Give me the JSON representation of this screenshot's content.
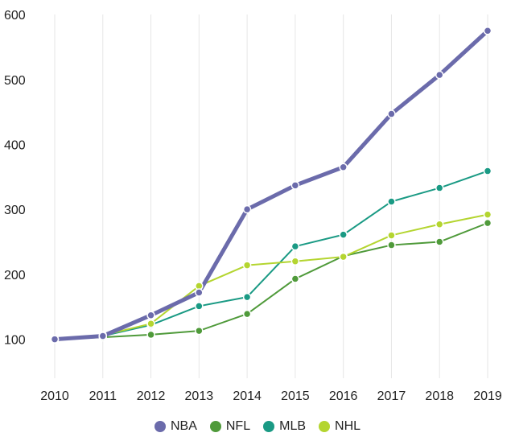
{
  "chart_data": {
    "type": "line",
    "x": [
      2010,
      2011,
      2012,
      2013,
      2014,
      2015,
      2016,
      2017,
      2018,
      2019
    ],
    "ylim": [
      40,
      610
    ],
    "y_ticks": [
      100,
      200,
      300,
      400,
      500,
      600
    ],
    "grid": "vertical",
    "legend_position": "bottom",
    "series": [
      {
        "name": "NBA",
        "color": "#6b6bab",
        "values": [
          100,
          105,
          137,
          172,
          300,
          337,
          365,
          447,
          507,
          575
        ]
      },
      {
        "name": "NFL",
        "color": "#4f9a3a",
        "values": [
          100,
          103,
          107,
          113,
          139,
          193,
          228,
          245,
          250,
          279
        ]
      },
      {
        "name": "MLB",
        "color": "#1a9a84",
        "values": [
          100,
          105,
          122,
          151,
          165,
          243,
          261,
          312,
          333,
          359
        ]
      },
      {
        "name": "NHL",
        "color": "#b4d530",
        "values": [
          100,
          106,
          124,
          182,
          214,
          220,
          227,
          260,
          277,
          292
        ]
      }
    ]
  }
}
